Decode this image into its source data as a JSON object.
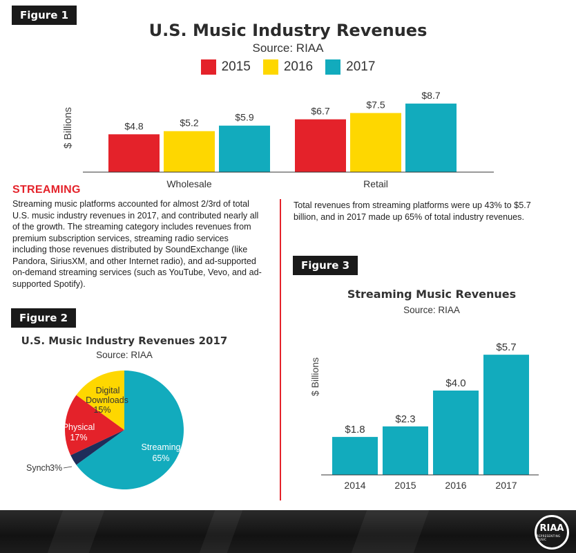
{
  "fig1": {
    "badge": "Figure 1",
    "title": "U.S. Music Industry Revenues",
    "source": "Source: RIAA",
    "ylabel": "$ Billions"
  },
  "streaming_section": {
    "heading": "STREAMING",
    "left_text": "Streaming music platforms accounted for almost 2/3rd of total U.S. music industry revenues in 2017, and contributed nearly all of the growth. The streaming category includes revenues from premium subscription services, streaming radio services including those revenues distributed by SoundExchange (like Pandora, SiriusXM, and other Internet radio), and ad-supported on-demand streaming services (such as YouTube, Vevo, and ad-supported Spotify).",
    "right_text": "Total revenues from streaming platforms were up 43% to $5.7 billion, and in 2017 made up 65% of total industry revenues."
  },
  "fig2": {
    "badge": "Figure 2",
    "title": "U.S. Music Industry Revenues 2017",
    "source": "Source: RIAA"
  },
  "fig3": {
    "badge": "Figure 3",
    "title": "Streaming Music Revenues",
    "source": "Source: RIAA",
    "ylabel": "$ Billions"
  },
  "logo": {
    "main": "RIAA",
    "sub": "REPRESENTING MUSIC"
  },
  "colors": {
    "red": "#e4222a",
    "yellow": "#fed700",
    "teal": "#12abbd",
    "navy": "#1f2d5a",
    "dark": "#1a1a1a"
  },
  "chart_data": [
    {
      "type": "bar",
      "title": "U.S. Music Industry Revenues",
      "ylabel": "$ Billions",
      "categories": [
        "Wholesale",
        "Retail"
      ],
      "series": [
        {
          "name": "2015",
          "color": "#e4222a",
          "values": [
            4.8,
            6.7
          ],
          "labels": [
            "$4.8",
            "$6.7"
          ]
        },
        {
          "name": "2016",
          "color": "#fed700",
          "values": [
            5.2,
            7.5
          ],
          "labels": [
            "$5.2",
            "$7.5"
          ]
        },
        {
          "name": "2017",
          "color": "#12abbd",
          "values": [
            5.9,
            8.7
          ],
          "labels": [
            "$5.9",
            "$8.7"
          ]
        }
      ],
      "legend": "top"
    },
    {
      "type": "pie",
      "title": "U.S. Music Industry Revenues 2017",
      "slices": [
        {
          "name": "Streaming",
          "value": 65,
          "label": "65%",
          "color": "#12abbd"
        },
        {
          "name": "Synch",
          "value": 3,
          "label": "3%",
          "color": "#1f2d5a"
        },
        {
          "name": "Physical",
          "value": 17,
          "label": "17%",
          "color": "#e4222a"
        },
        {
          "name": "Digital Downloads",
          "value": 15,
          "label": "15%",
          "color": "#fed700"
        }
      ]
    },
    {
      "type": "bar",
      "title": "Streaming Music Revenues",
      "ylabel": "$ Billions",
      "categories": [
        "2014",
        "2015",
        "2016",
        "2017"
      ],
      "values": [
        1.8,
        2.3,
        4.0,
        5.7
      ],
      "labels": [
        "$1.8",
        "$2.3",
        "$4.0",
        "$5.7"
      ],
      "color": "#12abbd"
    }
  ]
}
